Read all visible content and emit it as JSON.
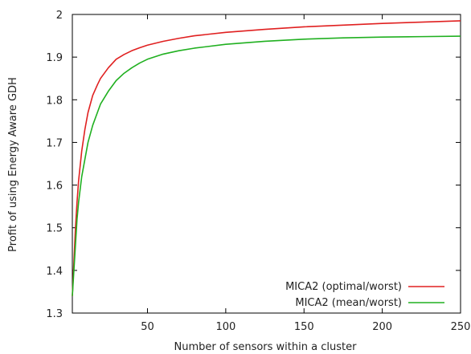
{
  "chart_data": {
    "type": "line",
    "title": "",
    "xlabel": "Number of sensors within a cluster",
    "ylabel": "Profit of using Energy Aware GDH",
    "xlim": [
      2,
      250
    ],
    "ylim": [
      1.3,
      2.0
    ],
    "x_ticks": [
      50,
      100,
      150,
      200,
      250
    ],
    "x_tick_labels": [
      "50",
      "100",
      "150",
      "200",
      "250"
    ],
    "y_ticks": [
      1.3,
      1.4,
      1.5,
      1.6,
      1.7,
      1.8,
      1.9,
      2.0
    ],
    "y_tick_labels": [
      "1.3",
      "1.4",
      "1.5",
      "1.6",
      "1.7",
      "1.8",
      "1.9",
      "2"
    ],
    "grid": false,
    "legend_position": "bottom-right",
    "series": [
      {
        "name": "MICA2 (optimal/worst)",
        "color": "#e02020",
        "x": [
          2,
          3,
          4,
          5,
          6,
          8,
          10,
          12,
          15,
          18,
          20,
          25,
          30,
          35,
          40,
          45,
          50,
          60,
          70,
          80,
          100,
          125,
          150,
          175,
          200,
          225,
          250
        ],
        "y": [
          1.34,
          1.42,
          1.5,
          1.56,
          1.61,
          1.68,
          1.73,
          1.77,
          1.81,
          1.835,
          1.85,
          1.875,
          1.895,
          1.906,
          1.915,
          1.922,
          1.928,
          1.937,
          1.944,
          1.95,
          1.958,
          1.965,
          1.971,
          1.975,
          1.979,
          1.982,
          1.985
        ]
      },
      {
        "name": "MICA2 (mean/worst)",
        "color": "#20b020",
        "x": [
          2,
          3,
          4,
          5,
          6,
          8,
          10,
          12,
          15,
          18,
          20,
          25,
          30,
          35,
          40,
          45,
          50,
          60,
          70,
          80,
          100,
          125,
          150,
          175,
          200,
          225,
          250
        ],
        "y": [
          1.34,
          1.4,
          1.46,
          1.52,
          1.56,
          1.62,
          1.66,
          1.7,
          1.74,
          1.77,
          1.79,
          1.82,
          1.845,
          1.862,
          1.875,
          1.886,
          1.895,
          1.907,
          1.915,
          1.921,
          1.93,
          1.937,
          1.942,
          1.945,
          1.947,
          1.948,
          1.949
        ]
      }
    ]
  }
}
